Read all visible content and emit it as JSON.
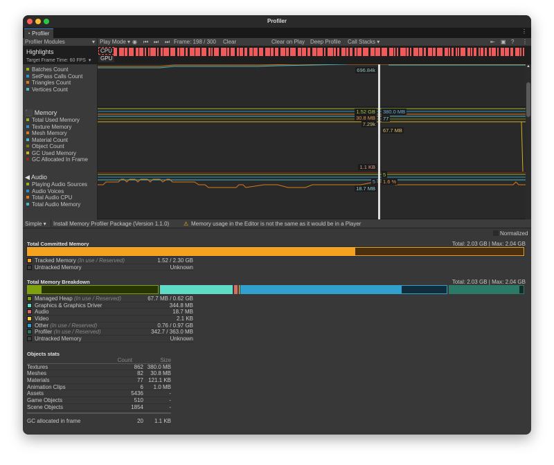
{
  "window": {
    "title": "Profiler",
    "tab": "Profiler"
  },
  "toolbar": {
    "modules": "Profiler Modules",
    "play_mode": "Play Mode",
    "frame": "Frame: 198 / 300",
    "clear": "Clear",
    "clear_on_play": "Clear on Play",
    "deep_profile": "Deep Profile",
    "call_stacks": "Call Stacks"
  },
  "highlights": {
    "title": "Highlights",
    "target": "Target Frame Time: 60 FPS",
    "cpu": "CPU",
    "gpu": "GPU"
  },
  "modules": [
    {
      "name": "",
      "items": [
        {
          "label": "Batches Count",
          "color": "#8fb51a"
        },
        {
          "label": "SetPass Calls Count",
          "color": "#2f8fc4"
        },
        {
          "label": "Triangles Count",
          "color": "#d9791b"
        },
        {
          "label": "Vertices Count",
          "color": "#4bb7c0"
        }
      ],
      "tags": [
        "696.84k"
      ]
    },
    {
      "name": "Memory",
      "items": [
        {
          "label": "Total Used Memory",
          "color": "#8fb51a"
        },
        {
          "label": "Texture Memory",
          "color": "#2f8fc4"
        },
        {
          "label": "Mesh Memory",
          "color": "#d9791b"
        },
        {
          "label": "Material Count",
          "color": "#4bb7c0"
        },
        {
          "label": "Object Count",
          "color": "#7a7a14"
        },
        {
          "label": "GC Used Memory",
          "color": "#d3b11c"
        },
        {
          "label": "GC Allocated In Frame",
          "color": "#8a2a1c"
        }
      ],
      "tags": [
        "1.52 GB",
        "380.0 MB",
        "30.8 MB",
        "77",
        "7.29k",
        "67.7 MB",
        "1.1 KB"
      ]
    },
    {
      "name": "Audio",
      "items": [
        {
          "label": "Playing Audio Sources",
          "color": "#8fb51a"
        },
        {
          "label": "Audio Voices",
          "color": "#2f8fc4"
        },
        {
          "label": "Total Audio CPU",
          "color": "#d9791b"
        },
        {
          "label": "Total Audio Memory",
          "color": "#4bb7c0"
        }
      ],
      "tags": [
        "5",
        "5",
        "1.6 %",
        "18.7 MB"
      ]
    }
  ],
  "bottom": {
    "view": "Simple",
    "install": "Install Memory Profiler Package (Version 1.1.0)",
    "warning": "Memory usage in the Editor is not the same as it would be in a Player",
    "normalized": "Normalized"
  },
  "committed": {
    "title": "Total Committed Memory",
    "total": "Total: 2.03 GB",
    "max": "Max: 2.04 GB",
    "used_fraction": 0.66,
    "rows": [
      {
        "label": "Tracked Memory",
        "note": "(In use / Reserved)",
        "value": "1.52 / 2.30 GB",
        "color": "#f4a21f"
      },
      {
        "label": "Untracked Memory",
        "note": "",
        "value": "Unknown",
        "color": "#444"
      }
    ]
  },
  "breakdown": {
    "title": "Total Memory Breakdown",
    "total": "Total: 2.03 GB",
    "max": "Max: 2.04 GB",
    "rows": [
      {
        "label": "Managed Heap",
        "note": "(In use / Reserved)",
        "value": "67.7 MB / 0.62 GB",
        "color": "#7fa10d"
      },
      {
        "label": "Graphics & Graphics Driver",
        "note": "",
        "value": "344.8 MB",
        "color": "#5fdcc4"
      },
      {
        "label": "Audio",
        "note": "",
        "value": "18.7 MB",
        "color": "#d86a6a"
      },
      {
        "label": "Video",
        "note": "",
        "value": "2.1 KB",
        "color": "#f3cf3c"
      },
      {
        "label": "Other",
        "note": "(In use / Reserved)",
        "value": "0.76 / 0.97 GB",
        "color": "#32a0cf"
      },
      {
        "label": "Profiler",
        "note": "(In use / Reserved)",
        "value": "342.7 / 363.0 MB",
        "color": "#2b7a68"
      },
      {
        "label": "Untracked Memory",
        "note": "",
        "value": "Unknown",
        "color": "#444"
      }
    ]
  },
  "objects": {
    "title": "Objects stats",
    "count_header": "Count",
    "size_header": "Size",
    "rows": [
      {
        "label": "Textures",
        "count": "862",
        "size": "380.0 MB"
      },
      {
        "label": "Meshes",
        "count": "82",
        "size": "30.8 MB"
      },
      {
        "label": "Materials",
        "count": "77",
        "size": "121.1 KB"
      },
      {
        "label": "Animation Clips",
        "count": "6",
        "size": "1.0 MB"
      },
      {
        "label": "Assets",
        "count": "5436",
        "size": "-"
      },
      {
        "label": "Game Objects",
        "count": "510",
        "size": "-"
      },
      {
        "label": "Scene Objects",
        "count": "1854",
        "size": "-"
      }
    ],
    "gc": {
      "label": "GC allocated in frame",
      "count": "20",
      "size": "1.1 KB"
    }
  }
}
